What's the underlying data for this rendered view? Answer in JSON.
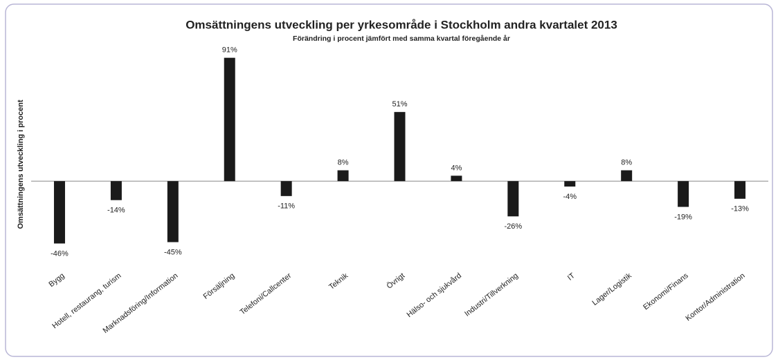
{
  "chart_data": {
    "type": "bar",
    "title": "Omsättningens utveckling per yrkesområde i Stockholm andra kvartalet 2013",
    "subtitle": "Förändring i procent jämfört med samma kvartal föregående år",
    "y_label": "Omsättningens utveckling i procent",
    "categories": [
      "Bygg",
      "Hotell, restaurang, turism",
      "Marknadsföring/Information",
      "Försäljning",
      "Telefoni/Callcenter",
      "Teknik",
      "Övrigt",
      "Hälso- och sjukvård",
      "Industri/Tillverkning",
      "IT",
      "Lager/Logistik",
      "Ekonomi/Finans",
      "Kontor/Administration"
    ],
    "values": [
      -46,
      -14,
      -45,
      91,
      -11,
      8,
      51,
      4,
      -26,
      -4,
      8,
      -19,
      -13
    ],
    "value_labels": [
      "-46%",
      "-14%",
      "-45%",
      "91%",
      "-11%",
      "8%",
      "51%",
      "4%",
      "-26%",
      "-4%",
      "8%",
      "-19%",
      "-13%"
    ],
    "color": "#1a1a1a",
    "ylim": [
      -60,
      100
    ]
  }
}
